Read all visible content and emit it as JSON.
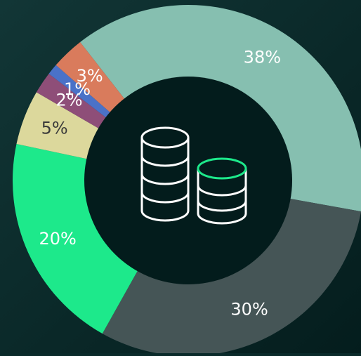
{
  "chart_data": {
    "type": "pie",
    "values": [
      38,
      30,
      20,
      5,
      2,
      1,
      3
    ],
    "value_labels": [
      "38%",
      "30%",
      "20%",
      "5%",
      "2%",
      "1%",
      "3%"
    ],
    "colors": [
      "#86bfb0",
      "#455556",
      "#1de98b",
      "#dcd89c",
      "#8e4e78",
      "#4a72c8",
      "#d97b5c"
    ]
  }
}
